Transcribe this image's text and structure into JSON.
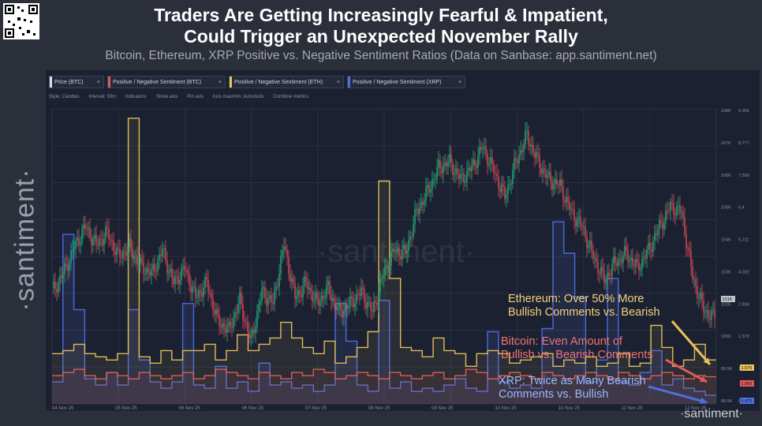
{
  "header": {
    "title_line1": "Traders Are Getting Increasingly Fearful & Impatient,",
    "title_line2": "Could Trigger an Unexpected November Rally",
    "subtitle": "Bitcoin, Ethereum, XRP Positive vs. Negative Sentiment Ratios (Data on Sanbase: app.santiment.net)"
  },
  "brand": {
    "side": "·santiment·",
    "corner": "·santiment·",
    "watermark": "·santiment·"
  },
  "tabs": [
    {
      "label": "Price (BTC)",
      "color": "#e0e0e0"
    },
    {
      "label": "Positive / Negative Sentiment (BTC)",
      "color": "#e05a5a"
    },
    {
      "label": "Positive / Negative Sentiment (ETH)",
      "color": "#e8c35a"
    },
    {
      "label": "Positive / Negative Sentiment (XRP)",
      "color": "#4f6fe0"
    }
  ],
  "toolbar": {
    "style": "Style: Candles",
    "interval": "Interval: 30m",
    "indicators": "Indicators:",
    "show_axis": "Show axis",
    "pin_axis": "Pin axis",
    "axis_max_min": "Axis max/min: Auto/Auto",
    "combine": "Combine metrics"
  },
  "callouts": {
    "eth": [
      "Ethereum: Over 50% More",
      "Bullish Comments vs. Bearish"
    ],
    "btc": [
      "Bitcoin: Even Amount of",
      "Bullish vs. Bearish Comments"
    ],
    "xrp": [
      "XRP: Twice as Many Bearish",
      "Comments vs. Bullish"
    ]
  },
  "colors": {
    "eth": "#e8c35a",
    "btc": "#e05a5a",
    "xrp": "#4f6fe0",
    "up": "#26b07a",
    "down": "#e04a5a"
  },
  "chart_data": {
    "type": "line",
    "x_ticks": [
      "04 Nov 25",
      "05 Nov 25",
      "06 Nov 25",
      "06 Nov 25",
      "07 Nov 25",
      "08 Nov 25",
      "09 Nov 25",
      "10 Nov 25",
      "10 Nov 25",
      "11 Nov 25",
      "12 Nov 25"
    ],
    "price_axis_ticks": [
      "108K",
      "107K",
      "106K",
      "105K",
      "104K",
      "103K",
      "102K",
      "100K",
      "99.5K",
      "98.5K"
    ],
    "sentiment_axis_ticks": [
      "9.355",
      "8.777",
      "7.599",
      "6.4",
      "5.211",
      "4.022",
      "2.834",
      "1.579",
      "1.065",
      "0.475"
    ],
    "latest_labels": [
      {
        "series": "Positive / Negative Sentiment (ETH)",
        "value": "1.579",
        "color": "#e8c35a"
      },
      {
        "series": "Positive / Negative Sentiment (BTC)",
        "value": "1.065",
        "color": "#e05a5a"
      },
      {
        "series": "Positive / Negative Sentiment (XRP)",
        "value": "0.475",
        "color": "#4f6fe0"
      },
      {
        "series": "Price (BTC)",
        "value": "101K",
        "color": "#c0c4cc"
      }
    ],
    "price_ylim": [
      98.2,
      108.2
    ],
    "sentiment_ylim": [
      0.2,
      9.6
    ],
    "series": [
      {
        "name": "Price (BTC)",
        "unit": "K",
        "values": [
          102.0,
          102.6,
          103.5,
          104.2,
          103.6,
          104.0,
          103.2,
          103.5,
          102.9,
          102.6,
          103.4,
          102.3,
          102.8,
          101.8,
          102.3,
          101.0,
          100.7,
          101.7,
          100.3,
          102.0,
          101.6,
          103.6,
          101.8,
          102.3,
          101.6,
          102.1,
          101.3,
          101.6,
          102.0,
          101.3,
          102.6,
          103.4,
          103.3,
          104.7,
          105.4,
          106.2,
          106.4,
          105.8,
          106.2,
          106.9,
          106.1,
          105.2,
          106.4,
          107.3,
          106.4,
          105.8,
          105.6,
          104.7,
          104.2,
          103.2,
          102.4,
          103.0,
          103.3,
          102.8,
          103.4,
          104.2,
          104.9,
          104.7,
          102.5,
          101.4,
          101.1
        ]
      },
      {
        "name": "Positive / Negative Sentiment (ETH)",
        "values": [
          1.8,
          1.9,
          2.1,
          1.8,
          1.7,
          1.6,
          1.8,
          9.3,
          1.7,
          1.5,
          1.9,
          1.6,
          1.9,
          1.9,
          2.1,
          1.6,
          1.9,
          2.4,
          1.9,
          2.1,
          2.3,
          2.8,
          2.3,
          2.0,
          1.8,
          2.2,
          1.5,
          1.7,
          2.0,
          2.5,
          7.3,
          4.2,
          2.0,
          1.9,
          1.7,
          2.3,
          1.9,
          1.8,
          1.4,
          1.8,
          1.9,
          1.8,
          1.5,
          1.6,
          1.7,
          1.8,
          1.4,
          1.6,
          1.5,
          1.7,
          1.4,
          1.5,
          1.8,
          1.4,
          1.5,
          2.7,
          2.0,
          1.4,
          1.6,
          2.1,
          1.6
        ]
      },
      {
        "name": "Positive / Negative Sentiment (BTC)",
        "values": [
          1.1,
          1.2,
          1.3,
          1.1,
          1.0,
          1.2,
          1.1,
          1.0,
          1.2,
          1.1,
          1.0,
          1.1,
          1.2,
          1.0,
          1.1,
          1.3,
          1.2,
          1.1,
          1.0,
          1.2,
          1.1,
          1.0,
          1.2,
          1.1,
          1.3,
          1.2,
          1.0,
          1.1,
          1.2,
          1.1,
          1.0,
          1.2,
          1.1,
          1.0,
          1.1,
          1.2,
          1.0,
          1.1,
          1.3,
          1.2,
          1.0,
          1.1,
          1.2,
          1.1,
          1.0,
          1.2,
          1.1,
          1.0,
          1.1,
          1.2,
          1.1,
          1.0,
          1.2,
          1.1,
          1.0,
          1.1,
          1.2,
          1.1,
          1.0,
          1.1,
          1.065
        ]
      },
      {
        "name": "Positive / Negative Sentiment (XRP)",
        "values": [
          0.9,
          5.6,
          3.2,
          1.0,
          0.8,
          1.2,
          0.8,
          3.2,
          1.6,
          0.9,
          0.7,
          0.9,
          3.4,
          0.8,
          0.7,
          1.4,
          0.7,
          0.9,
          0.6,
          1.5,
          0.8,
          0.9,
          0.7,
          0.8,
          0.6,
          0.8,
          3.4,
          2.2,
          0.8,
          0.6,
          3.5,
          0.7,
          0.9,
          0.6,
          0.7,
          0.6,
          0.8,
          1.0,
          0.7,
          0.6,
          2.5,
          0.9,
          0.7,
          0.8,
          0.7,
          2.6,
          6.0,
          5.0,
          3.6,
          0.9,
          1.6,
          4.2,
          0.9,
          0.8,
          1.2,
          1.9,
          0.8,
          1.0,
          0.7,
          0.6,
          0.475
        ]
      }
    ]
  }
}
